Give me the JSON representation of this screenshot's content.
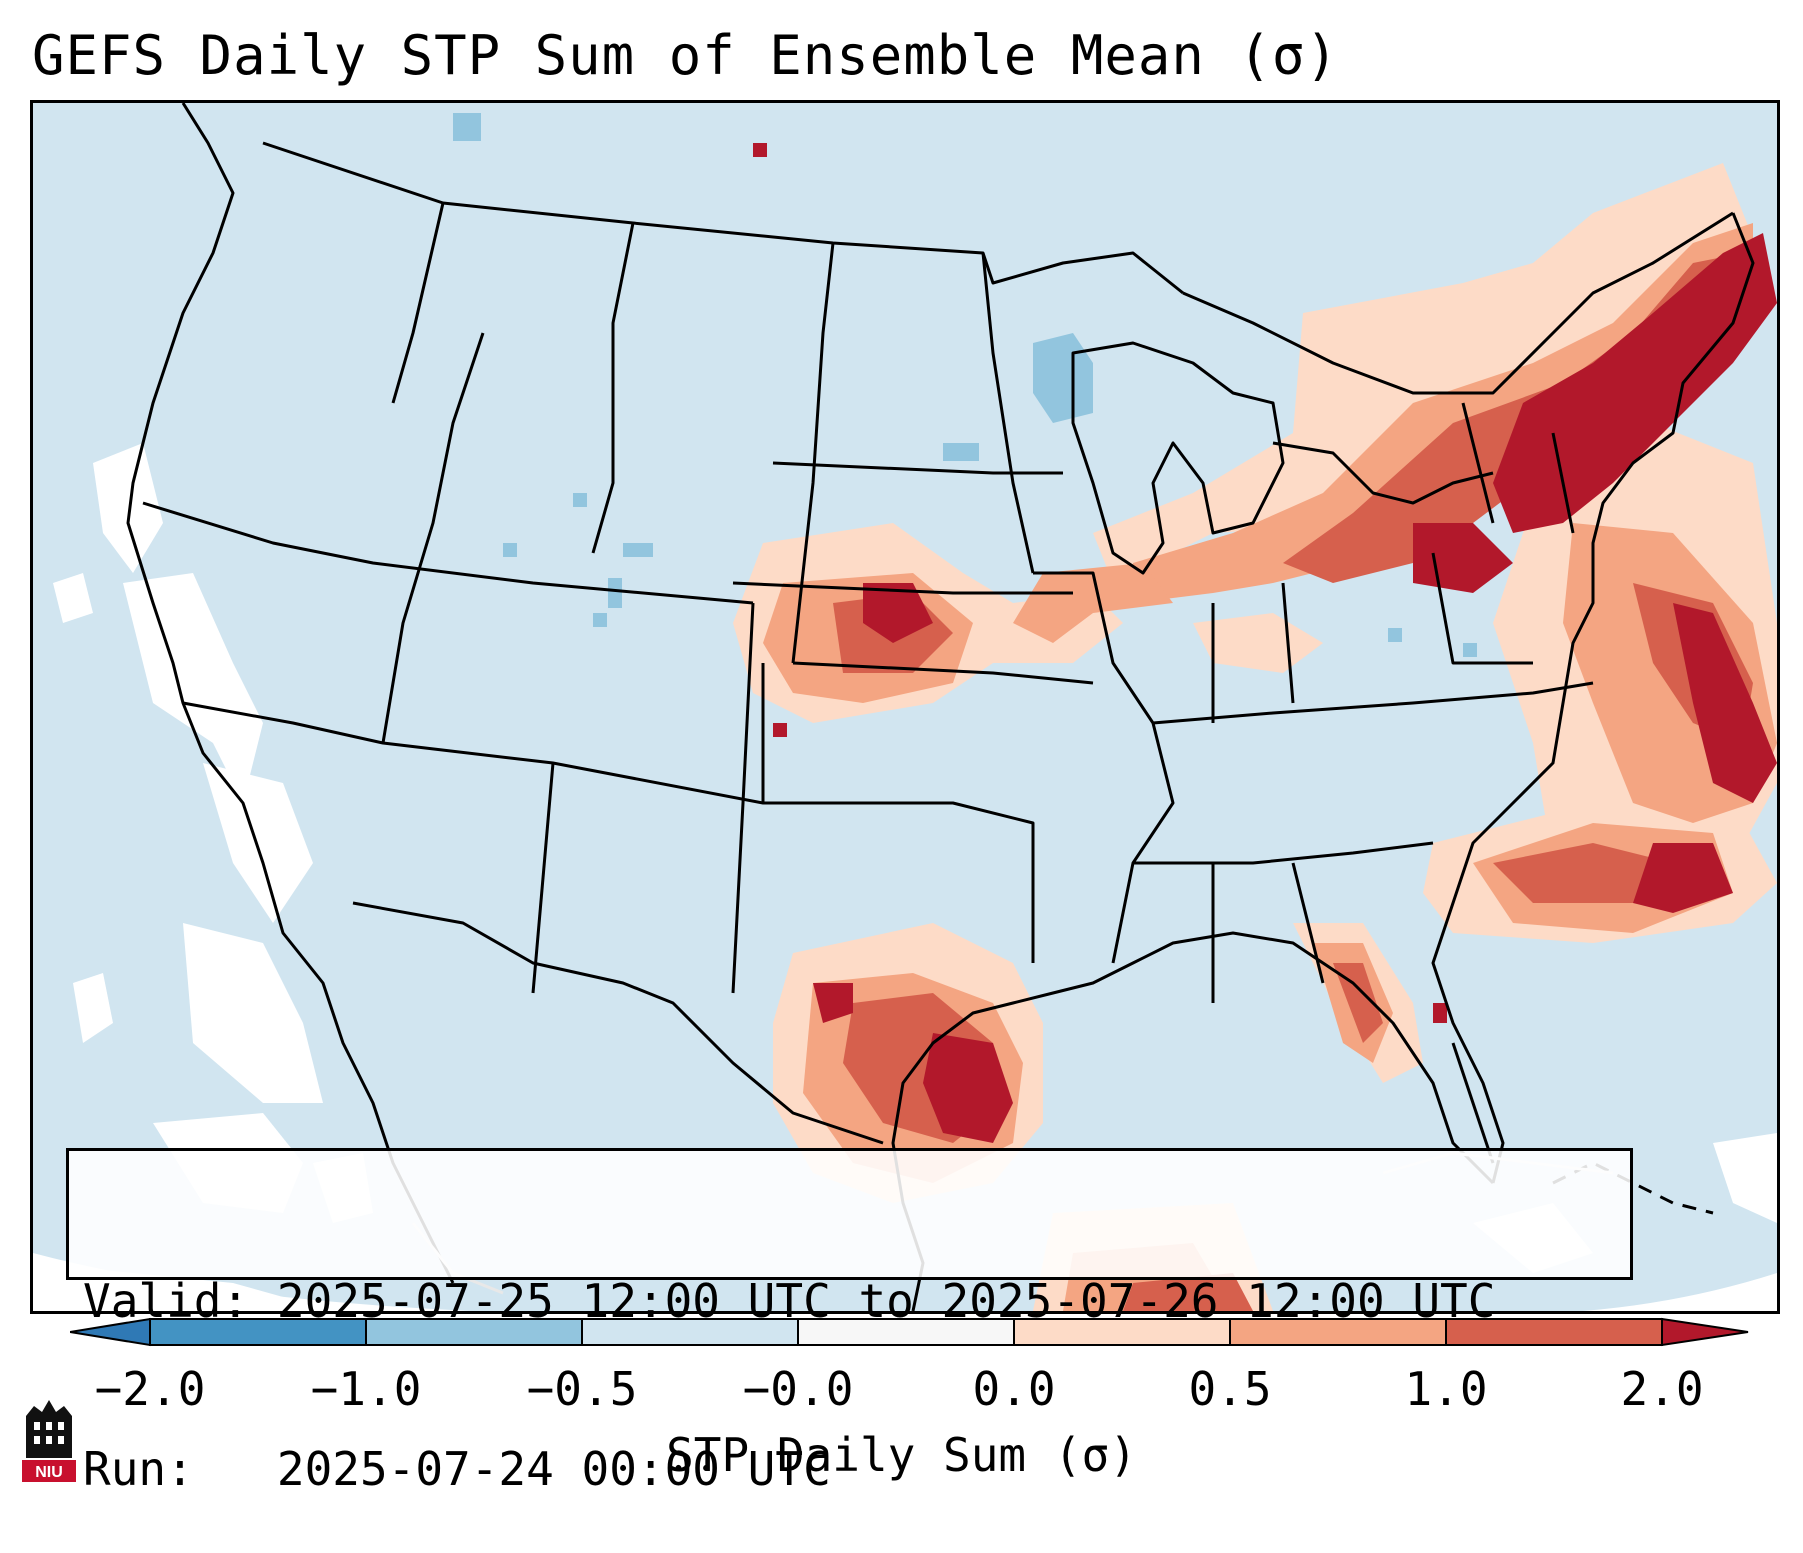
{
  "title": "GEFS Daily STP Sum of Ensemble Mean (σ)",
  "info": {
    "valid_label": "Valid:",
    "valid_value": "2025-07-25 12:00 UTC to 2025-07-26 12:00 UTC",
    "run_label": "Run:",
    "run_value": "2025-07-24 00:00 UTC"
  },
  "colorbar": {
    "label": "STP Daily Sum (σ)",
    "ticks": [
      "−2.0",
      "−1.0",
      "−0.5",
      "−0.0",
      "0.0",
      "0.5",
      "1.0",
      "2.0"
    ],
    "colors": {
      "under": "#2f79b5",
      "bin_1": "#4393c3",
      "bin_2": "#92c5de",
      "bin_3": "#d1e5f0",
      "bin_4": "#f7f7f7",
      "bin_5": "#fddbc7",
      "bin_6": "#f4a582",
      "bin_7": "#d6604d",
      "over": "#b2182b"
    }
  },
  "logo": {
    "text": "NIU"
  },
  "map": {
    "ocean_color": "#d1e5f0",
    "no_data_color": "#ffffff",
    "regions": [
      {
        "name": "Northeast US",
        "level": "over"
      },
      {
        "name": "Atlantic offshore",
        "level": "over"
      },
      {
        "name": "Kansas / Nebraska",
        "level": "bin_7"
      },
      {
        "name": "South Texas / Gulf coast",
        "level": "over"
      },
      {
        "name": "Florida west coast",
        "level": "bin_7"
      },
      {
        "name": "Wisconsin",
        "level": "bin_2"
      }
    ]
  }
}
